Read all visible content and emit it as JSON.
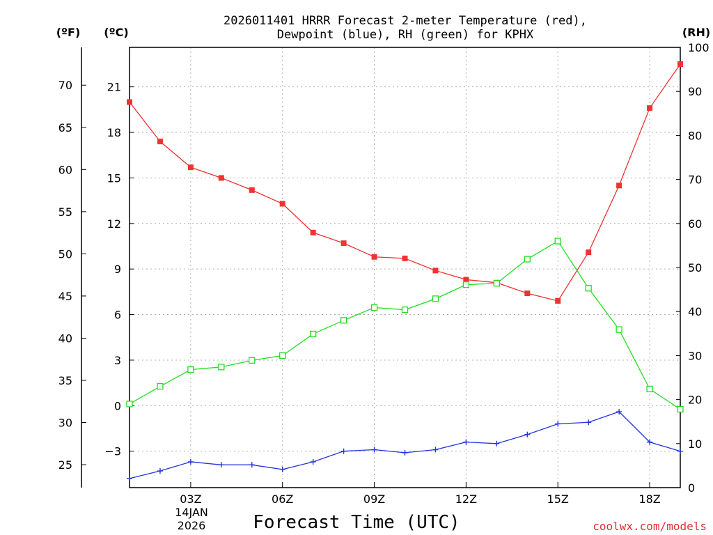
{
  "chart_data": {
    "type": "line",
    "title_line1": "2026011401 HRRR Forecast 2-meter Temperature (red),",
    "title_line2": "Dewpoint (blue), RH (green) for KPHX",
    "xlabel": "Forecast Time (UTC)",
    "credit": "coolwx.com/models",
    "units": {
      "fahrenheit": "(ºF)",
      "celsius": "(ºC)",
      "rh": "(RH)"
    },
    "date_label": [
      "14JAN",
      "2026"
    ],
    "x_hours": [
      1,
      2,
      3,
      4,
      5,
      6,
      7,
      8,
      9,
      10,
      11,
      12,
      13,
      14,
      15,
      16,
      17,
      18,
      19
    ],
    "xlim": [
      1,
      19
    ],
    "x_ticks": [
      {
        "hour": 3,
        "label": "03Z"
      },
      {
        "hour": 6,
        "label": "06Z"
      },
      {
        "hour": 9,
        "label": "09Z"
      },
      {
        "hour": 12,
        "label": "12Z"
      },
      {
        "hour": 15,
        "label": "15Z"
      },
      {
        "hour": 18,
        "label": "18Z"
      }
    ],
    "celsius_axis": {
      "range": [
        -5.4,
        23.6
      ],
      "ticks": [
        "-3",
        "0",
        "3",
        "6",
        "9",
        "12",
        "15",
        "18",
        "21"
      ]
    },
    "fahrenheit_axis": {
      "ticks": [
        "25",
        "30",
        "35",
        "40",
        "45",
        "50",
        "55",
        "60",
        "65",
        "70"
      ]
    },
    "rh_axis": {
      "range": [
        0,
        100
      ],
      "ticks": [
        "0",
        "10",
        "20",
        "30",
        "40",
        "50",
        "60",
        "70",
        "80",
        "90",
        "100"
      ]
    },
    "series": [
      {
        "name": "2-meter Temperature",
        "axis": "celsius",
        "color": "#ee3333",
        "marker": "filled-square",
        "values": [
          20.0,
          17.4,
          15.7,
          15.0,
          14.2,
          13.3,
          11.4,
          10.7,
          9.8,
          9.7,
          8.9,
          8.3,
          8.1,
          7.4,
          6.9,
          10.1,
          14.5,
          19.6,
          22.5
        ]
      },
      {
        "name": "Dewpoint",
        "axis": "celsius",
        "color": "#2233dd",
        "marker": "plus",
        "values": [
          -4.8,
          -4.3,
          -3.7,
          -3.9,
          -3.9,
          -4.2,
          -3.7,
          -3.0,
          -2.9,
          -3.1,
          -2.9,
          -2.4,
          -2.5,
          -1.9,
          -1.2,
          -1.1,
          -0.4,
          -2.4,
          -3.0
        ]
      },
      {
        "name": "RH",
        "axis": "rh",
        "color": "#22dd22",
        "marker": "open-square",
        "values": [
          19.0,
          23.0,
          26.8,
          27.4,
          28.9,
          30.0,
          34.9,
          38.0,
          40.9,
          40.4,
          42.9,
          46.1,
          46.4,
          51.9,
          56.0,
          45.3,
          35.9,
          22.4,
          17.8
        ]
      }
    ]
  }
}
